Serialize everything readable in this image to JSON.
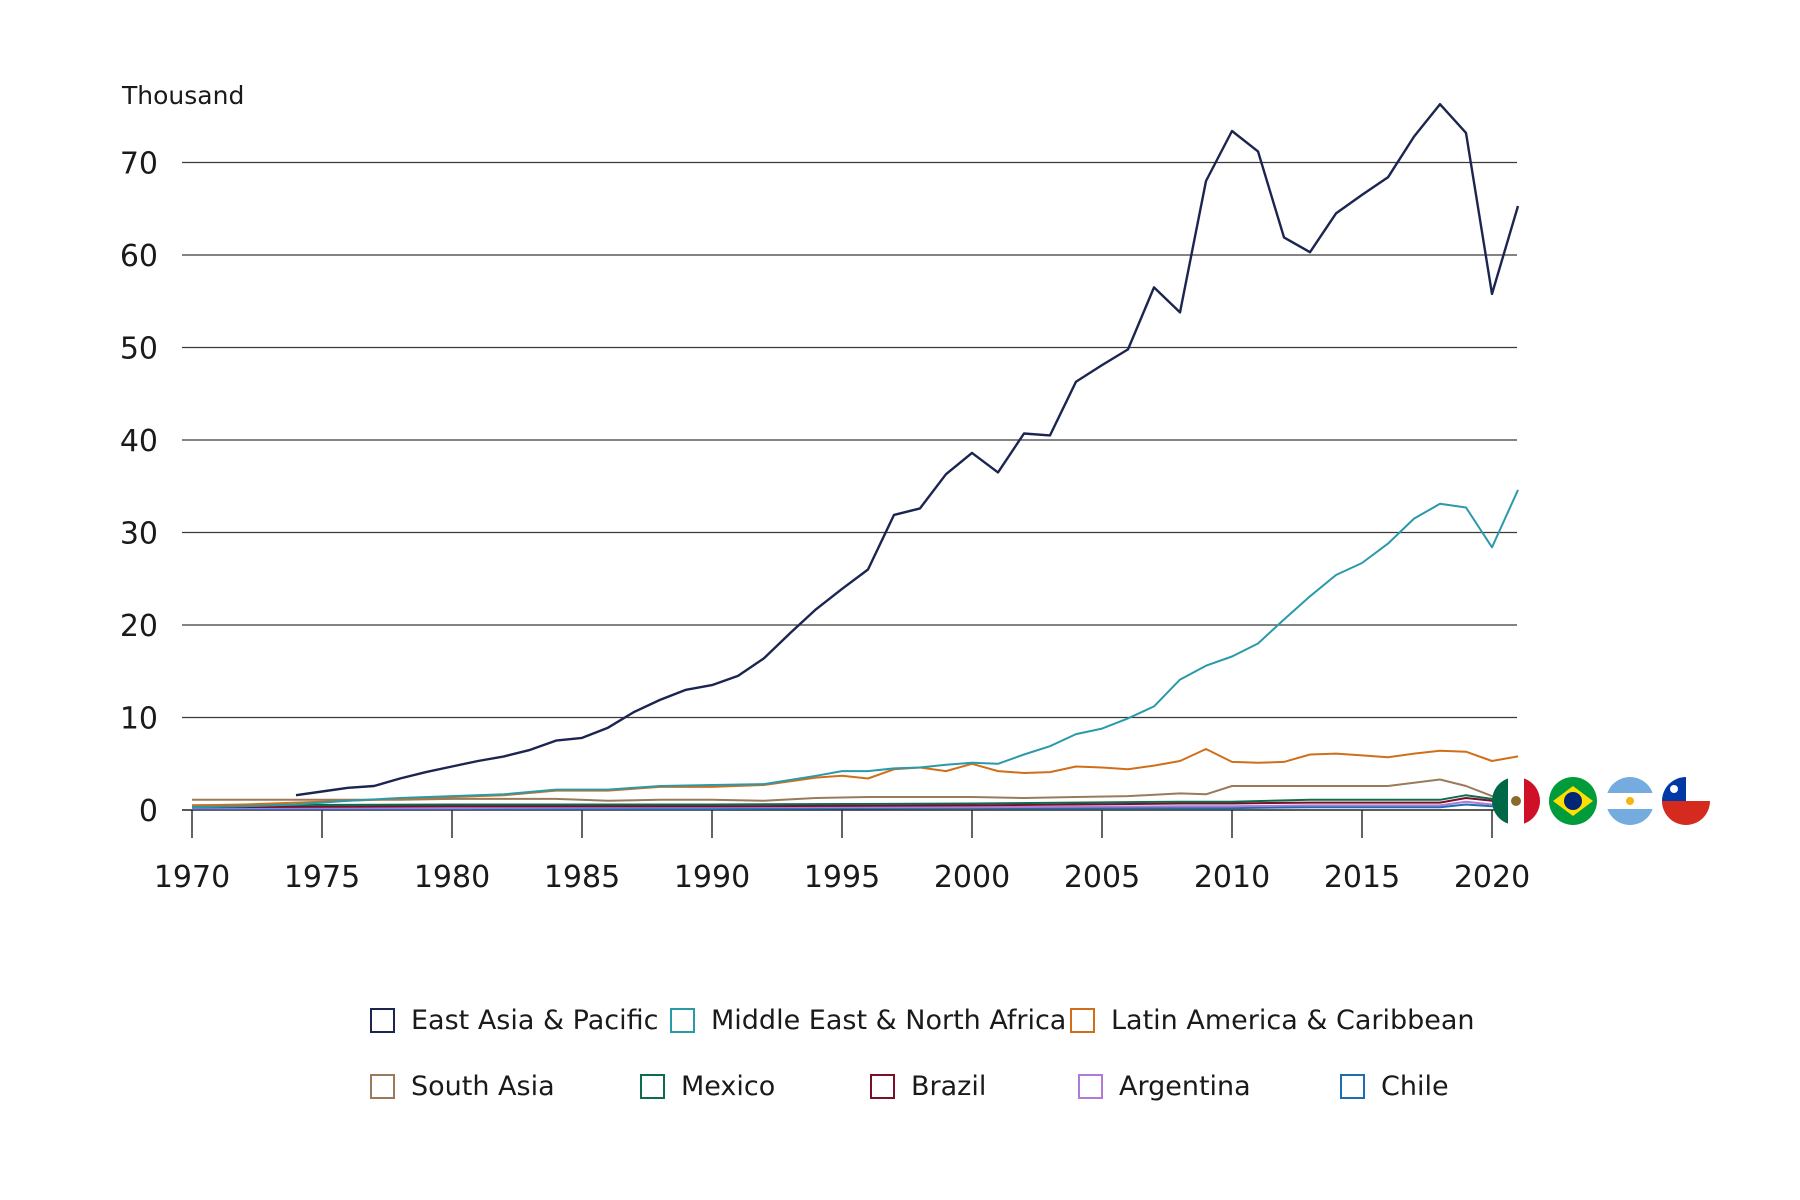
{
  "chart_data": {
    "type": "line",
    "title": "",
    "unit_label": "Thousand",
    "xlabel": "",
    "ylabel": "Thousand",
    "xlim": [
      1970,
      2021
    ],
    "ylim": [
      0,
      75
    ],
    "x_ticks": [
      "1970",
      "1975",
      "1980",
      "1985",
      "1990",
      "1995",
      "2000",
      "2005",
      "2010",
      "2015",
      "2020"
    ],
    "y_ticks": [
      "0",
      "10",
      "20",
      "30",
      "40",
      "50",
      "60",
      "70"
    ],
    "grid": "horizontal",
    "legend_position": "bottom",
    "series": [
      {
        "name": "East Asia & Pacific",
        "color": "#1b2550",
        "x": [
          1974,
          1975,
          1976,
          1977,
          1978,
          1979,
          1980,
          1981,
          1982,
          1983,
          1984,
          1985,
          1986,
          1987,
          1988,
          1989,
          1990,
          1991,
          1992,
          1993,
          1994,
          1995,
          1996,
          1997,
          1998,
          1999,
          2000,
          2001,
          2002,
          2003,
          2004,
          2005,
          2006,
          2007,
          2008,
          2009,
          2010,
          2011,
          2012,
          2013,
          2014,
          2015,
          2016,
          2017,
          2018,
          2019,
          2020,
          2021
        ],
        "values": [
          1.6,
          2.0,
          2.4,
          2.6,
          3.4,
          4.1,
          4.7,
          5.3,
          5.8,
          6.5,
          7.5,
          7.8,
          8.9,
          10.6,
          11.9,
          13.0,
          13.5,
          14.5,
          16.4,
          19.1,
          21.7,
          23.9,
          26.0,
          31.9,
          32.6,
          36.3,
          38.6,
          36.5,
          40.7,
          40.5,
          46.3,
          48.1,
          49.8,
          56.5,
          53.8,
          68.0,
          73.4,
          71.2,
          61.9,
          60.3,
          64.5,
          66.5,
          68.4,
          72.8,
          76.3,
          73.2,
          55.8,
          65.3
        ]
      },
      {
        "name": "Middle East & North Africa",
        "color": "#2a9aaa",
        "x": [
          1970,
          1972,
          1974,
          1976,
          1978,
          1980,
          1982,
          1984,
          1986,
          1988,
          1990,
          1992,
          1994,
          1995,
          1996,
          1997,
          1998,
          1999,
          2000,
          2001,
          2002,
          2003,
          2004,
          2005,
          2006,
          2007,
          2008,
          2009,
          2010,
          2011,
          2012,
          2013,
          2014,
          2015,
          2016,
          2017,
          2018,
          2019,
          2020,
          2021
        ],
        "values": [
          0.3,
          0.4,
          0.6,
          1.0,
          1.3,
          1.5,
          1.7,
          2.2,
          2.2,
          2.6,
          2.7,
          2.8,
          3.7,
          4.2,
          4.2,
          4.5,
          4.6,
          4.9,
          5.1,
          5.0,
          6.0,
          6.9,
          8.2,
          8.8,
          9.9,
          11.2,
          14.1,
          15.6,
          16.6,
          18.0,
          20.6,
          23.1,
          25.4,
          26.7,
          28.8,
          31.5,
          33.1,
          32.7,
          28.4,
          34.6
        ]
      },
      {
        "name": "Latin America & Caribbean",
        "color": "#d06f1a",
        "x": [
          1970,
          1972,
          1974,
          1976,
          1978,
          1980,
          1982,
          1984,
          1986,
          1988,
          1990,
          1992,
          1994,
          1995,
          1996,
          1997,
          1998,
          1999,
          2000,
          2001,
          2002,
          2003,
          2004,
          2005,
          2006,
          2007,
          2008,
          2009,
          2010,
          2011,
          2012,
          2013,
          2014,
          2015,
          2016,
          2017,
          2018,
          2019,
          2020,
          2021
        ],
        "values": [
          0.5,
          0.6,
          0.8,
          1.0,
          1.2,
          1.4,
          1.6,
          2.1,
          2.1,
          2.5,
          2.5,
          2.7,
          3.5,
          3.7,
          3.4,
          4.4,
          4.6,
          4.2,
          5.0,
          4.2,
          4.0,
          4.1,
          4.7,
          4.6,
          4.4,
          4.8,
          5.3,
          6.6,
          5.2,
          5.1,
          5.2,
          6.0,
          6.1,
          5.9,
          5.7,
          6.1,
          6.4,
          6.3,
          5.3,
          5.8
        ]
      },
      {
        "name": "South Asia",
        "color": "#9b7a5c",
        "x": [
          1970,
          1972,
          1974,
          1976,
          1978,
          1980,
          1982,
          1984,
          1986,
          1988,
          1990,
          1992,
          1994,
          1996,
          1998,
          2000,
          2002,
          2004,
          2006,
          2008,
          2009,
          2010,
          2012,
          2014,
          2016,
          2018,
          2019,
          2020,
          2021
        ],
        "values": [
          1.1,
          1.1,
          1.1,
          1.1,
          1.1,
          1.2,
          1.2,
          1.2,
          1.0,
          1.1,
          1.1,
          1.0,
          1.3,
          1.4,
          1.4,
          1.4,
          1.3,
          1.4,
          1.5,
          1.8,
          1.7,
          2.6,
          2.6,
          2.6,
          2.6,
          3.3,
          2.6,
          1.5,
          1.4
        ]
      },
      {
        "name": "Mexico",
        "color": "#0f6b4e",
        "x": [
          1970,
          1980,
          1990,
          2000,
          2008,
          2010,
          2013,
          2018,
          2019,
          2020,
          2021
        ],
        "values": [
          0.5,
          0.6,
          0.6,
          0.7,
          0.9,
          0.9,
          1.1,
          1.1,
          1.6,
          1.2,
          1.3
        ]
      },
      {
        "name": "Brazil",
        "color": "#7a1028",
        "x": [
          1970,
          1980,
          1990,
          2000,
          2008,
          2010,
          2013,
          2018,
          2019,
          2020,
          2021
        ],
        "values": [
          0.3,
          0.4,
          0.4,
          0.5,
          0.7,
          0.7,
          0.8,
          0.8,
          1.3,
          1.0,
          1.2
        ]
      },
      {
        "name": "Argentina",
        "color": "#b07ad8",
        "x": [
          1970,
          1980,
          1990,
          2000,
          2008,
          2010,
          2013,
          2018,
          2019,
          2020,
          2021
        ],
        "values": [
          0.2,
          0.2,
          0.3,
          0.3,
          0.4,
          0.4,
          0.5,
          0.5,
          0.9,
          0.6,
          0.8
        ]
      },
      {
        "name": "Chile",
        "color": "#1b6fb0",
        "x": [
          1970,
          1980,
          1990,
          2000,
          2008,
          2010,
          2013,
          2018,
          2019,
          2020,
          2021
        ],
        "values": [
          0.1,
          0.1,
          0.1,
          0.2,
          0.2,
          0.2,
          0.3,
          0.3,
          0.6,
          0.4,
          0.5
        ]
      }
    ]
  },
  "flags": [
    {
      "name": "Mexico",
      "icon": "mexico-flag-icon",
      "colors": [
        "#006847",
        "#ffffff",
        "#ce1126"
      ]
    },
    {
      "name": "Brazil",
      "icon": "brazil-flag-icon",
      "colors": [
        "#009c3b",
        "#ffdf00",
        "#002776"
      ]
    },
    {
      "name": "Argentina",
      "icon": "argentina-flag-icon",
      "colors": [
        "#74acdf",
        "#ffffff",
        "#f6b40e"
      ]
    },
    {
      "name": "Chile",
      "icon": "chile-flag-icon",
      "colors": [
        "#d52b1e",
        "#ffffff",
        "#0039a6"
      ]
    }
  ]
}
